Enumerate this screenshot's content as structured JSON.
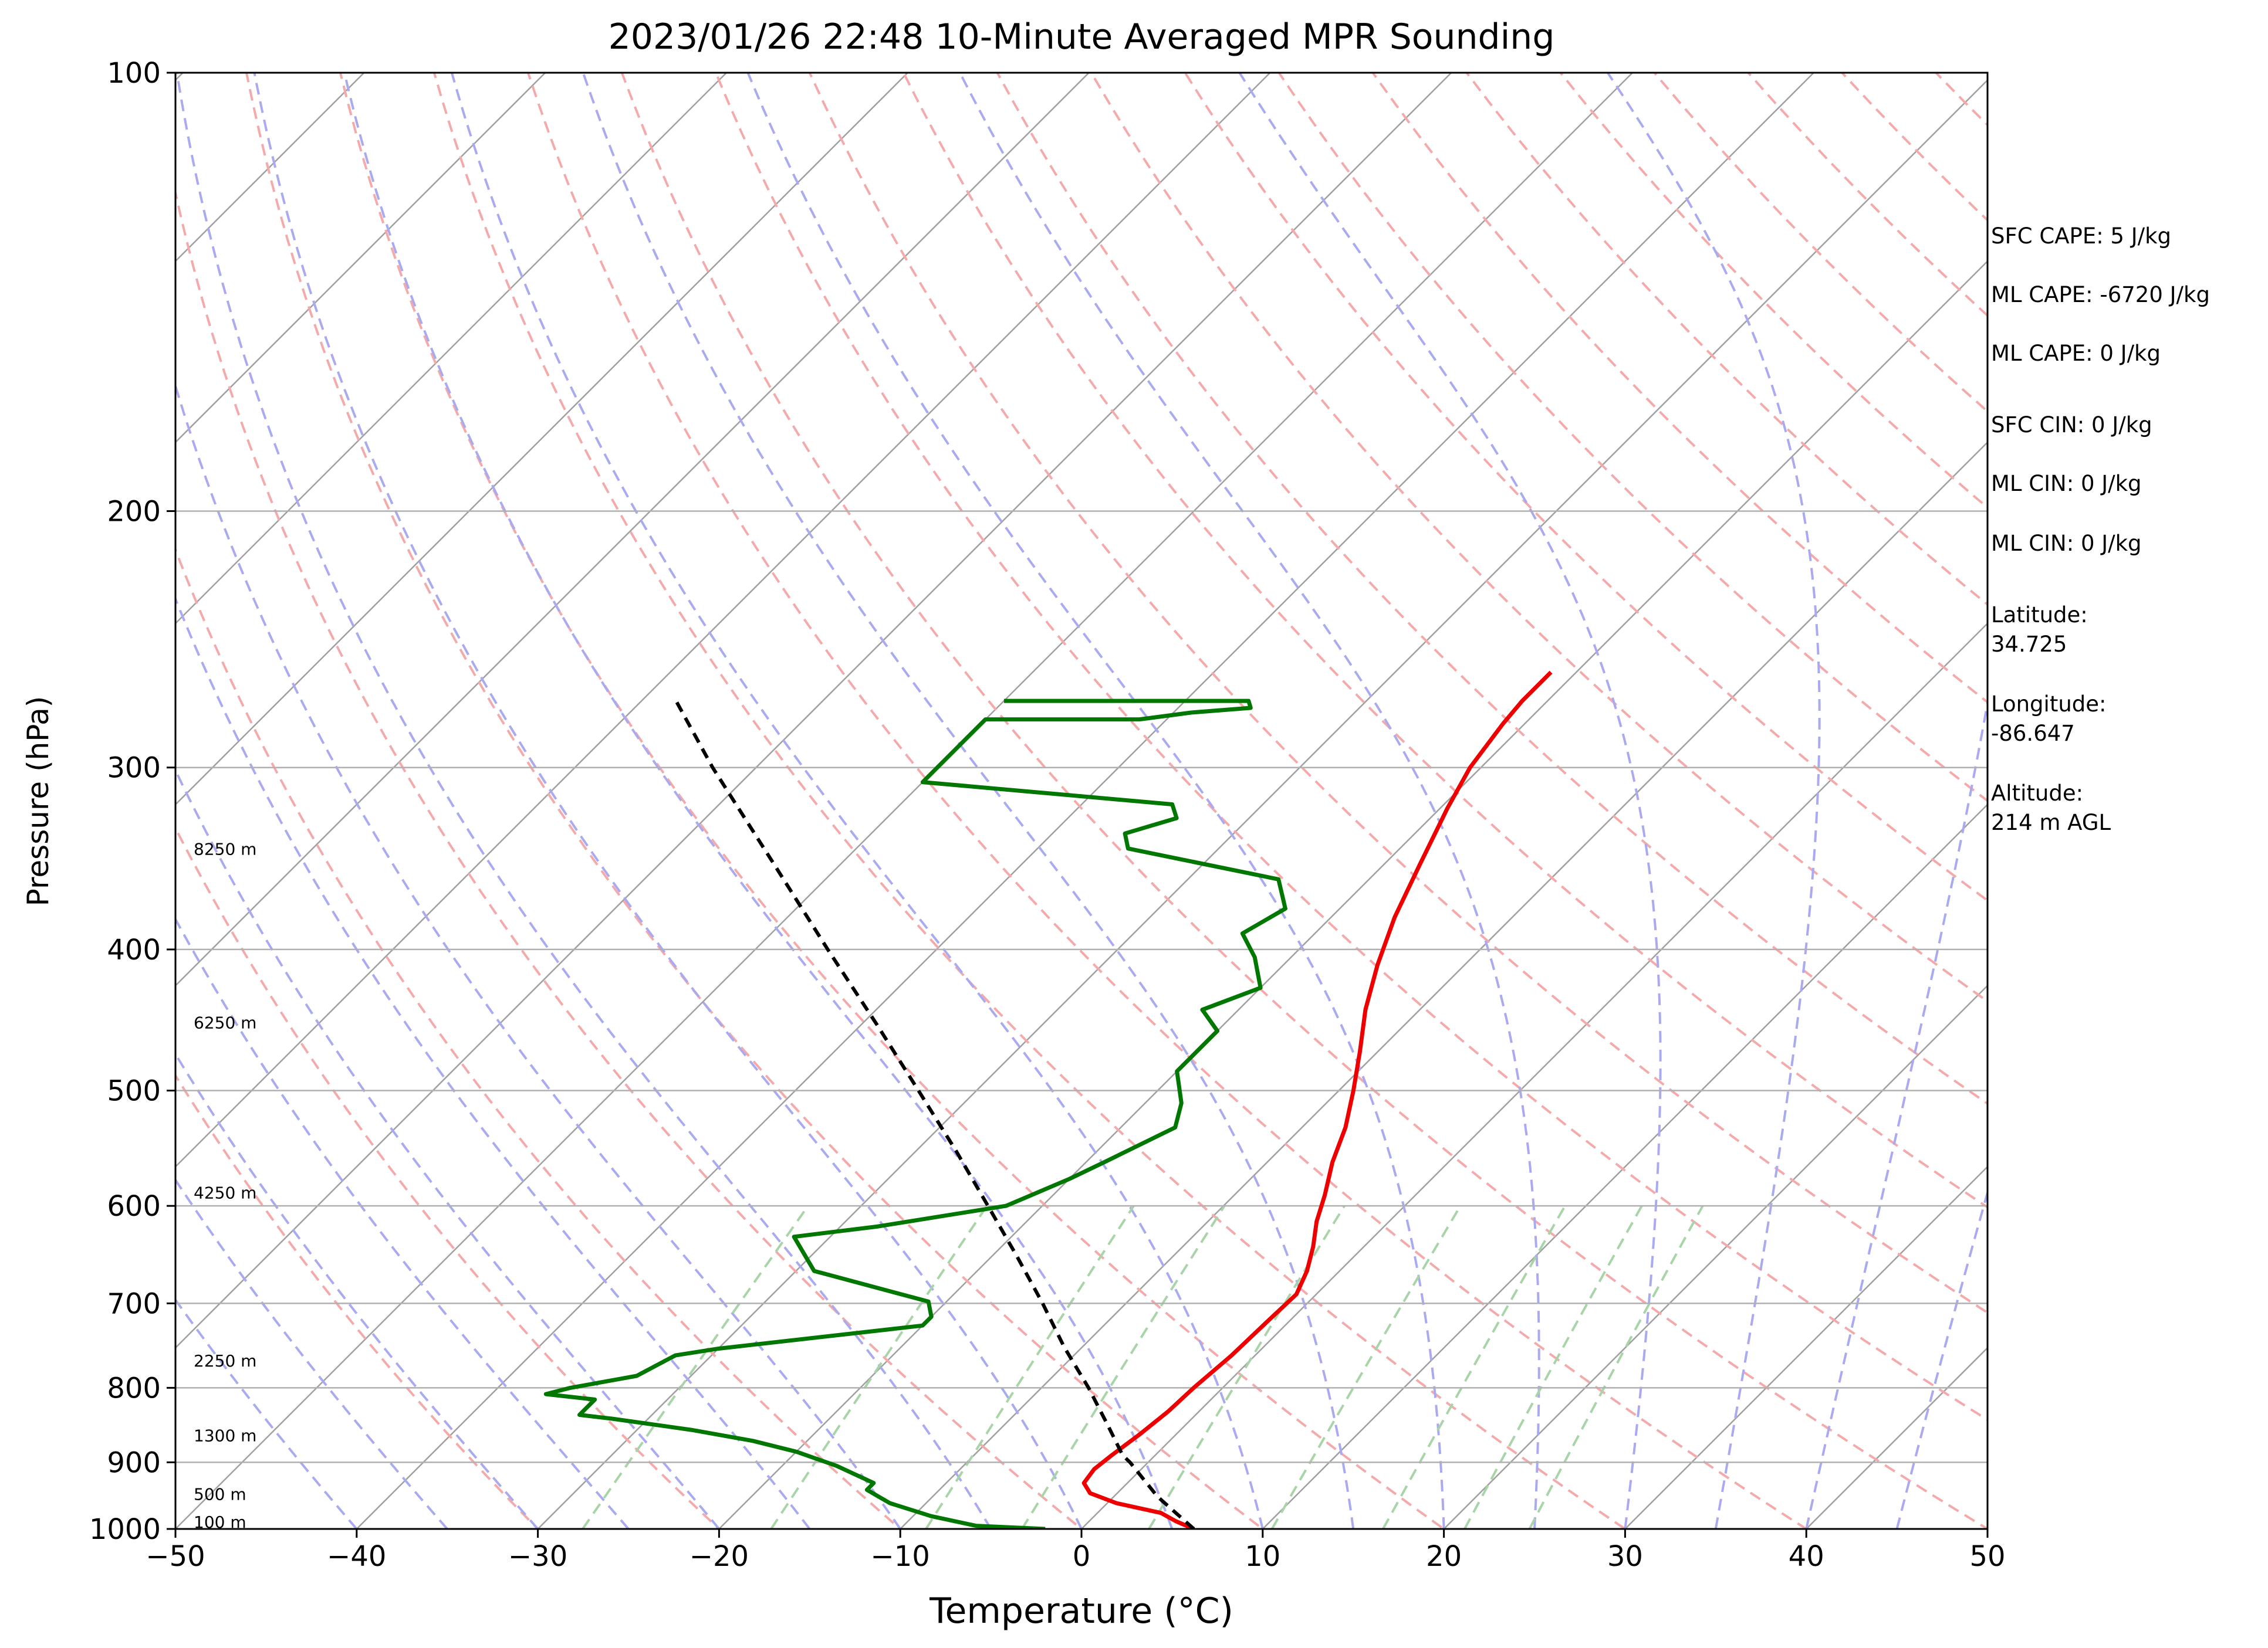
{
  "chart_data": {
    "type": "line",
    "title": "2023/01/26 22:48 10-Minute Averaged MPR Sounding",
    "xlabel": "Temperature (°C)",
    "ylabel": "Pressure (hPa)",
    "xlim": [
      -50,
      50
    ],
    "ylim": [
      1000,
      100
    ],
    "y_scale": "log",
    "skew_t": true,
    "grid": true,
    "x_ticks": [
      -50,
      -40,
      -30,
      -20,
      -10,
      0,
      10,
      20,
      30,
      40,
      50
    ],
    "x_tick_labels": [
      "−50",
      "−40",
      "−30",
      "−20",
      "−10",
      "0",
      "10",
      "20",
      "30",
      "40",
      "50"
    ],
    "y_ticks": [
      1000,
      900,
      800,
      700,
      600,
      500,
      400,
      300,
      200,
      100
    ],
    "y_tick_labels": [
      "1000",
      "900",
      "800",
      "700",
      "600",
      "500",
      "400",
      "300",
      "200",
      "100"
    ],
    "background_lines": {
      "isotherms_color": "#a0a0a0",
      "dry_adiabats_color": "#f4aaaa",
      "moist_adiabats_color": "#aaaaf0",
      "mixing_ratio_color": "#a8d4a8"
    },
    "height_labels": [
      {
        "p": 1000,
        "label": "100 m"
      },
      {
        "p": 957,
        "label": "500 m"
      },
      {
        "p": 872,
        "label": "1300 m"
      },
      {
        "p": 775,
        "label": "2250 m"
      },
      {
        "p": 594,
        "label": "4250 m"
      },
      {
        "p": 454,
        "label": "6250 m"
      },
      {
        "p": 345,
        "label": "8250 m"
      }
    ],
    "series": [
      {
        "role": "temperature",
        "color": "#ee0000",
        "points": [
          [
            1000,
            6.2
          ],
          [
            988,
            4.8
          ],
          [
            975,
            3.5
          ],
          [
            960,
            0.5
          ],
          [
            945,
            -1.5
          ],
          [
            930,
            -2.4
          ],
          [
            910,
            -2.6
          ],
          [
            890,
            -2.4
          ],
          [
            860,
            -2.0
          ],
          [
            830,
            -1.7
          ],
          [
            800,
            -1.6
          ],
          [
            760,
            -1.3
          ],
          [
            720,
            -1.2
          ],
          [
            690,
            -1.1
          ],
          [
            665,
            -1.8
          ],
          [
            640,
            -2.8
          ],
          [
            615,
            -4.0
          ],
          [
            590,
            -5.0
          ],
          [
            560,
            -6.4
          ],
          [
            530,
            -7.6
          ],
          [
            500,
            -9.2
          ],
          [
            470,
            -11.0
          ],
          [
            440,
            -13.0
          ],
          [
            410,
            -14.8
          ],
          [
            380,
            -16.5
          ],
          [
            350,
            -18.0
          ],
          [
            320,
            -19.6
          ],
          [
            300,
            -20.6
          ],
          [
            280,
            -21.2
          ],
          [
            270,
            -21.4
          ],
          [
            258,
            -21.4
          ]
        ]
      },
      {
        "role": "dewpoint",
        "color": "#007700",
        "points": [
          [
            1000,
            -2
          ],
          [
            995,
            -6
          ],
          [
            980,
            -9
          ],
          [
            960,
            -12
          ],
          [
            940,
            -14
          ],
          [
            930,
            -14
          ],
          [
            905,
            -17
          ],
          [
            885,
            -20
          ],
          [
            870,
            -23
          ],
          [
            855,
            -27
          ],
          [
            840,
            -32
          ],
          [
            835,
            -34
          ],
          [
            815,
            -34
          ],
          [
            808,
            -37
          ],
          [
            800,
            -36
          ],
          [
            790,
            -34
          ],
          [
            785,
            -33
          ],
          [
            760,
            -32
          ],
          [
            752,
            -30
          ],
          [
            725,
            -20
          ],
          [
            715,
            -20
          ],
          [
            698,
            -21
          ],
          [
            665,
            -29
          ],
          [
            630,
            -32
          ],
          [
            620,
            -28
          ],
          [
            600,
            -22
          ],
          [
            575,
            -20
          ],
          [
            560,
            -19
          ],
          [
            530,
            -17
          ],
          [
            510,
            -18
          ],
          [
            485,
            -20
          ],
          [
            455,
            -20
          ],
          [
            440,
            -22
          ],
          [
            425,
            -20
          ],
          [
            405,
            -22
          ],
          [
            390,
            -24
          ],
          [
            375,
            -23
          ],
          [
            358,
            -25
          ],
          [
            341,
            -35
          ],
          [
            333,
            -36
          ],
          [
            325,
            -34
          ],
          [
            318,
            -35
          ],
          [
            307,
            -50
          ],
          [
            278,
            -50
          ],
          [
            278,
            -41.5
          ],
          [
            275,
            -39
          ],
          [
            273,
            -36
          ],
          [
            270,
            -36.5
          ],
          [
            270,
            -50
          ]
        ]
      },
      {
        "role": "parcel",
        "color": "#000000",
        "dashed": true,
        "points": [
          [
            1000,
            6.2
          ],
          [
            950,
            2.4
          ],
          [
            900,
            -1.0
          ],
          [
            890,
            -1.8
          ],
          [
            850,
            -4.2
          ],
          [
            800,
            -7.4
          ],
          [
            750,
            -11.0
          ],
          [
            700,
            -14.6
          ],
          [
            650,
            -18.6
          ],
          [
            600,
            -23.0
          ],
          [
            550,
            -27.8
          ],
          [
            500,
            -33.2
          ],
          [
            450,
            -39.2
          ],
          [
            400,
            -46.0
          ],
          [
            350,
            -53.6
          ],
          [
            300,
            -62.4
          ],
          [
            268,
            -68.5
          ]
        ]
      }
    ]
  },
  "side_panel": {
    "sfc_cape": "SFC CAPE: 5 J/kg",
    "ml_cape": "ML CAPE: -6720 J/kg",
    "ml_cape_2": "ML CAPE: 0 J/kg",
    "sfc_cin": "SFC CIN: 0 J/kg",
    "ml_cin": "ML CIN: 0 J/kg",
    "ml_cin_2": "ML CIN: 0 J/kg",
    "latitude_label": "Latitude:",
    "latitude_value": "34.725",
    "longitude_label": "Longitude:",
    "longitude_value": "-86.647",
    "altitude_label": "Altitude:",
    "altitude_value": "214 m AGL"
  }
}
